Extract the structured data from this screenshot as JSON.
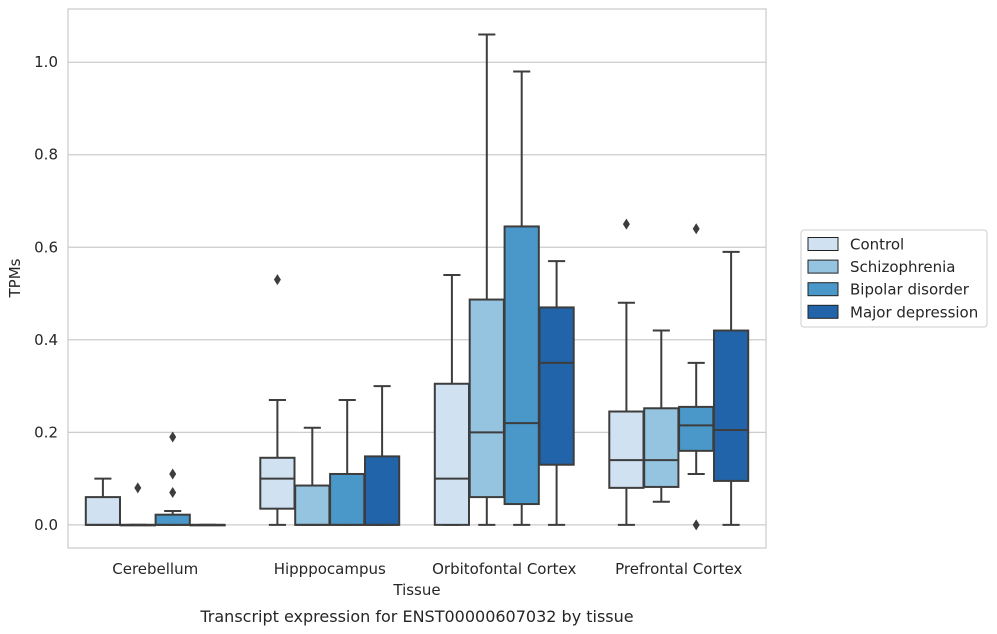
{
  "chart_data": {
    "type": "box",
    "title": "",
    "caption": "Transcript expression for ENST00000607032 by tissue",
    "xlabel": "Tissue",
    "ylabel": "TPMs",
    "ylim": [
      -0.05,
      1.115
    ],
    "yticks": [
      0.0,
      0.2,
      0.4,
      0.6,
      0.8,
      1.0
    ],
    "ytick_labels": [
      "0.0",
      "0.2",
      "0.4",
      "0.6",
      "0.8",
      "1.0"
    ],
    "grid": true,
    "legend_position": "right",
    "categories": [
      "Cerebellum",
      "Hipppocampus",
      "Orbitofontal Cortex",
      "Prefrontal Cortex"
    ],
    "series": [
      {
        "name": "Control",
        "color": "#d0e1f2",
        "boxes": [
          {
            "whislo": 0.0,
            "q1": 0.0,
            "med": 0.0,
            "q3": 0.06,
            "whishi": 0.1,
            "fliers": []
          },
          {
            "whislo": 0.0,
            "q1": 0.035,
            "med": 0.1,
            "q3": 0.145,
            "whishi": 0.27,
            "fliers": [
              0.53
            ]
          },
          {
            "whislo": 0.0,
            "q1": 0.0,
            "med": 0.1,
            "q3": 0.305,
            "whishi": 0.54,
            "fliers": []
          },
          {
            "whislo": 0.0,
            "q1": 0.08,
            "med": 0.14,
            "q3": 0.245,
            "whishi": 0.48,
            "fliers": [
              0.65
            ]
          }
        ]
      },
      {
        "name": "Schizophrenia",
        "color": "#94c4df",
        "boxes": [
          {
            "whislo": 0.0,
            "q1": 0.0,
            "med": 0.0,
            "q3": 0.0,
            "whishi": 0.0,
            "fliers": [
              0.08
            ]
          },
          {
            "whislo": 0.0,
            "q1": 0.0,
            "med": 0.0,
            "q3": 0.085,
            "whishi": 0.21,
            "fliers": []
          },
          {
            "whislo": 0.0,
            "q1": 0.06,
            "med": 0.2,
            "q3": 0.487,
            "whishi": 1.06,
            "fliers": []
          },
          {
            "whislo": 0.05,
            "q1": 0.082,
            "med": 0.14,
            "q3": 0.252,
            "whishi": 0.42,
            "fliers": []
          }
        ]
      },
      {
        "name": "Bipolar disorder",
        "color": "#4a98c9",
        "boxes": [
          {
            "whislo": 0.0,
            "q1": 0.0,
            "med": 0.0,
            "q3": 0.022,
            "whishi": 0.03,
            "fliers": [
              0.07,
              0.11,
              0.19
            ]
          },
          {
            "whislo": 0.0,
            "q1": 0.0,
            "med": 0.0,
            "q3": 0.11,
            "whishi": 0.27,
            "fliers": []
          },
          {
            "whislo": 0.0,
            "q1": 0.045,
            "med": 0.22,
            "q3": 0.645,
            "whishi": 0.98,
            "fliers": []
          },
          {
            "whislo": 0.11,
            "q1": 0.16,
            "med": 0.215,
            "q3": 0.255,
            "whishi": 0.35,
            "fliers": [
              0.0,
              0.64
            ]
          }
        ]
      },
      {
        "name": "Major depression",
        "color": "#2264a9",
        "boxes": [
          {
            "whislo": 0.0,
            "q1": 0.0,
            "med": 0.0,
            "q3": 0.0,
            "whishi": 0.0,
            "fliers": []
          },
          {
            "whislo": 0.0,
            "q1": 0.0,
            "med": 0.0,
            "q3": 0.148,
            "whishi": 0.3,
            "fliers": []
          },
          {
            "whislo": 0.0,
            "q1": 0.13,
            "med": 0.35,
            "q3": 0.47,
            "whishi": 0.57,
            "fliers": []
          },
          {
            "whislo": 0.0,
            "q1": 0.095,
            "med": 0.205,
            "q3": 0.42,
            "whishi": 0.59,
            "fliers": []
          }
        ]
      }
    ]
  }
}
